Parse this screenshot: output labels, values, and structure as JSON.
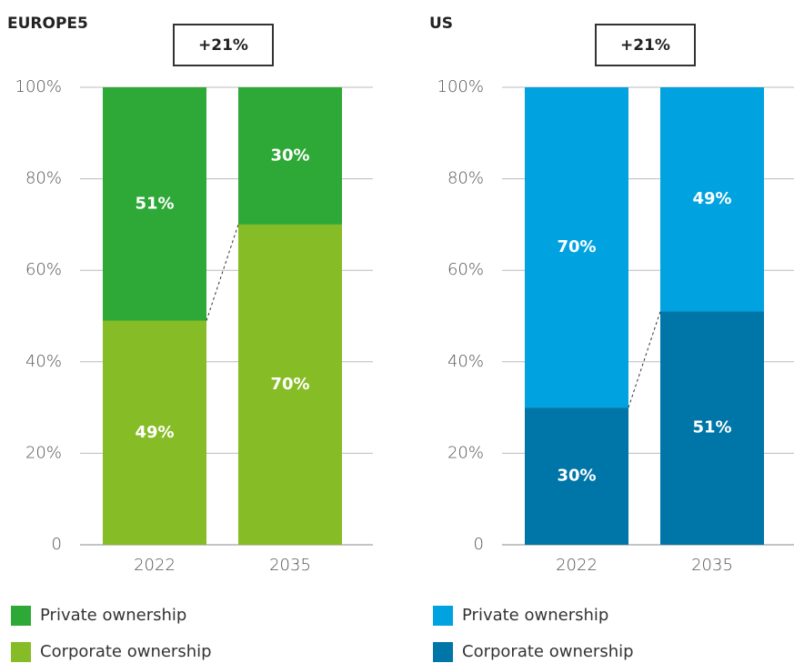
{
  "chart_data": [
    {
      "type": "bar",
      "stacked": true,
      "title": "EUROPE5",
      "annotation": "+21%",
      "categories": [
        "2022",
        "2035"
      ],
      "series": [
        {
          "name": "Private ownership",
          "color": "#2ea836",
          "values": [
            51,
            30
          ],
          "value_labels": [
            "51%",
            "30%"
          ]
        },
        {
          "name": "Corporate ownership",
          "color": "#86bc25",
          "values": [
            49,
            70
          ],
          "value_labels": [
            "49%",
            "70%"
          ]
        }
      ],
      "ylim": [
        0,
        100
      ],
      "yticks": [
        0,
        {
          "value": 20,
          "label": "20%"
        },
        {
          "value": 40,
          "label": "40%"
        },
        {
          "value": 60,
          "label": "60%"
        },
        {
          "value": 80,
          "label": "80%"
        },
        {
          "value": 100,
          "label": "100%"
        }
      ],
      "grid": true
    },
    {
      "type": "bar",
      "stacked": true,
      "title": "US",
      "annotation": "+21%",
      "categories": [
        "2022",
        "2035"
      ],
      "series": [
        {
          "name": "Private ownership",
          "color": "#00a3e0",
          "values": [
            70,
            49
          ],
          "value_labels": [
            "70%",
            "49%"
          ]
        },
        {
          "name": "Corporate ownership",
          "color": "#0076a8",
          "values": [
            30,
            51
          ],
          "value_labels": [
            "30%",
            "51%"
          ]
        }
      ],
      "ylim": [
        0,
        100
      ],
      "yticks": [
        0,
        {
          "value": 20,
          "label": "20%"
        },
        {
          "value": 40,
          "label": "40%"
        },
        {
          "value": 60,
          "label": "60%"
        },
        {
          "value": 80,
          "label": "80%"
        },
        {
          "value": 100,
          "label": "100%"
        }
      ],
      "grid": true
    }
  ]
}
